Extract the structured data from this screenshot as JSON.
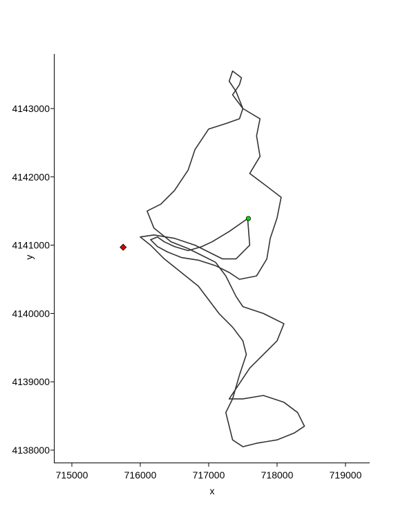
{
  "chart_data": {
    "type": "line",
    "title": "",
    "xlabel": "x",
    "ylabel": "y",
    "xlim": [
      714900,
      719400
    ],
    "ylim": [
      4137800,
      4143800
    ],
    "x_ticks": [
      715000,
      716000,
      717000,
      718000,
      719000
    ],
    "y_ticks": [
      4138000,
      4139000,
      4140000,
      4141000,
      4142000,
      4143000
    ],
    "grid": false,
    "legend": "none",
    "series": [
      {
        "line_color": "#333333",
        "points": [
          [
            717570,
            4141390
          ],
          [
            717300,
            4141200
          ],
          [
            717050,
            4141050
          ],
          [
            716900,
            4140980
          ],
          [
            716700,
            4140920
          ],
          [
            716500,
            4140980
          ],
          [
            716350,
            4141050
          ],
          [
            716250,
            4141120
          ],
          [
            716150,
            4141080
          ],
          [
            716250,
            4140980
          ],
          [
            716400,
            4140900
          ],
          [
            716600,
            4140820
          ],
          [
            716850,
            4140780
          ],
          [
            717100,
            4140700
          ],
          [
            717300,
            4140600
          ],
          [
            717450,
            4140500
          ],
          [
            717700,
            4140550
          ],
          [
            717850,
            4140800
          ],
          [
            717900,
            4141100
          ],
          [
            718000,
            4141400
          ],
          [
            718060,
            4141700
          ],
          [
            717800,
            4141900
          ],
          [
            717600,
            4142050
          ],
          [
            717750,
            4142300
          ],
          [
            717700,
            4142600
          ],
          [
            717750,
            4142850
          ],
          [
            717500,
            4143000
          ],
          [
            717350,
            4143200
          ],
          [
            717450,
            4143350
          ],
          [
            717480,
            4143450
          ],
          [
            717350,
            4143550
          ],
          [
            717300,
            4143400
          ],
          [
            717400,
            4143250
          ],
          [
            717500,
            4143000
          ],
          [
            717450,
            4142850
          ],
          [
            717250,
            4142780
          ],
          [
            717000,
            4142700
          ],
          [
            716800,
            4142400
          ],
          [
            716700,
            4142100
          ],
          [
            716500,
            4141800
          ],
          [
            716300,
            4141600
          ],
          [
            716100,
            4141500
          ],
          [
            716200,
            4141250
          ],
          [
            716450,
            4141050
          ],
          [
            716700,
            4140950
          ],
          [
            716900,
            4140850
          ],
          [
            717100,
            4140750
          ],
          [
            717250,
            4140550
          ],
          [
            717400,
            4140250
          ],
          [
            717500,
            4140100
          ],
          [
            717800,
            4140000
          ],
          [
            718100,
            4139850
          ],
          [
            718000,
            4139600
          ],
          [
            717800,
            4139400
          ],
          [
            717600,
            4139200
          ],
          [
            717400,
            4138900
          ],
          [
            717300,
            4138750
          ],
          [
            717500,
            4138750
          ],
          [
            717800,
            4138800
          ],
          [
            718100,
            4138700
          ],
          [
            718300,
            4138550
          ],
          [
            718400,
            4138350
          ],
          [
            718250,
            4138250
          ],
          [
            718000,
            4138150
          ],
          [
            717700,
            4138100
          ],
          [
            717500,
            4138050
          ],
          [
            717350,
            4138150
          ],
          [
            717300,
            4138350
          ],
          [
            717250,
            4138550
          ],
          [
            717350,
            4138750
          ],
          [
            717450,
            4139100
          ],
          [
            717550,
            4139400
          ],
          [
            717500,
            4139600
          ],
          [
            717350,
            4139800
          ],
          [
            717150,
            4140000
          ],
          [
            717000,
            4140200
          ],
          [
            716850,
            4140400
          ],
          [
            716600,
            4140600
          ],
          [
            716350,
            4140800
          ],
          [
            716150,
            4141000
          ],
          [
            716000,
            4141120
          ],
          [
            716200,
            4141150
          ],
          [
            716500,
            4141100
          ],
          [
            716800,
            4141000
          ],
          [
            717000,
            4140900
          ],
          [
            717200,
            4140800
          ],
          [
            717400,
            4140800
          ],
          [
            717600,
            4141000
          ],
          [
            717570,
            4141390
          ]
        ]
      }
    ],
    "markers": [
      {
        "shape": "circle",
        "color": "#00dd00",
        "x": 717580,
        "y": 4141390
      },
      {
        "shape": "diamond",
        "color": "#dd0000",
        "x": 715750,
        "y": 4140970
      }
    ]
  }
}
